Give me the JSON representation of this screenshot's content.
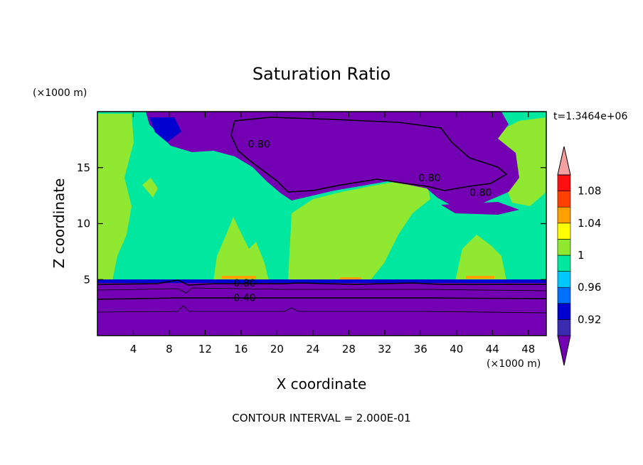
{
  "chart_data": {
    "type": "heatmap",
    "title": "Saturation Ratio",
    "xlabel": "X coordinate",
    "ylabel": "Z coordinate",
    "x_unit": "(×1000 m)",
    "y_unit": "(×1000 m)",
    "timestamp": "t=1.3464e+06",
    "footer": "CONTOUR INTERVAL = 2.000E-01",
    "xlim": [
      0,
      50
    ],
    "ylim": [
      0,
      20
    ],
    "x_ticks": [
      4,
      8,
      12,
      16,
      20,
      24,
      28,
      32,
      36,
      40,
      44,
      48
    ],
    "y_ticks": [
      5,
      10,
      15
    ],
    "colorbar": {
      "levels": [
        0.9,
        0.92,
        0.94,
        0.96,
        0.98,
        1.0,
        1.02,
        1.04,
        1.06,
        1.08,
        1.1
      ],
      "colors": [
        "#7300b3",
        "#3b2bb0",
        "#0000d0",
        "#0070ff",
        "#00c8ff",
        "#00e8a0",
        "#90e830",
        "#ffff00",
        "#ffa000",
        "#ff4000",
        "#ff1010",
        "#f4a0a0"
      ],
      "labels": [
        {
          "text": "0.92",
          "value": 0.92
        },
        {
          "text": "0.96",
          "value": 0.96
        },
        {
          "text": "1",
          "value": 1.0
        },
        {
          "text": "1.04",
          "value": 1.04
        },
        {
          "text": "1.08",
          "value": 1.08
        }
      ]
    },
    "contour_labels": [
      {
        "text": "0.80",
        "x": 18,
        "z": 17.1
      },
      {
        "text": "0.80",
        "x": 37,
        "z": 14.1
      },
      {
        "text": "0.80",
        "x": 42.7,
        "z": 12.8
      },
      {
        "text": "0.80",
        "x": 16.4,
        "z": 4.7
      },
      {
        "text": "0.40",
        "x": 16.4,
        "z": 3.4
      }
    ]
  }
}
